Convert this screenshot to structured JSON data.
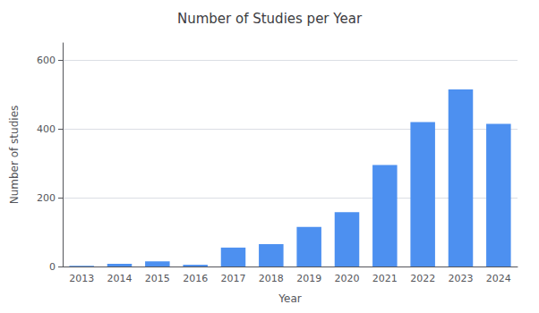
{
  "chart_data": {
    "type": "bar",
    "title": "Number of Studies per Year",
    "xlabel": "Year",
    "ylabel": "Number of studies",
    "categories": [
      "2013",
      "2014",
      "2015",
      "2016",
      "2017",
      "2018",
      "2019",
      "2020",
      "2021",
      "2022",
      "2023",
      "2024"
    ],
    "values": [
      2,
      8,
      15,
      5,
      55,
      65,
      115,
      158,
      295,
      420,
      515,
      415
    ],
    "color": "#4D90F0",
    "ylim": [
      0,
      650
    ],
    "yticks": [
      0,
      200,
      400,
      600
    ],
    "grid": true
  }
}
